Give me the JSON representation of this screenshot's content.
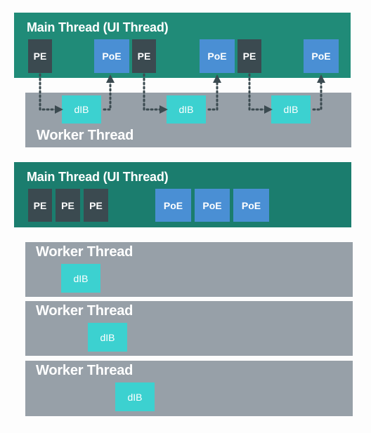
{
  "labels": {
    "main_thread": "Main Thread (UI Thread)",
    "worker_thread": "Worker Thread",
    "pe": "PE",
    "poe": "PoE",
    "dib": "dIB"
  },
  "colors": {
    "main_thread": "#208b78",
    "worker_thread": "#97a0a8",
    "pe": "#3b4a50",
    "poe": "#4a8fd4",
    "dib": "#3cd1d0",
    "arrow": "#3b4a50"
  }
}
